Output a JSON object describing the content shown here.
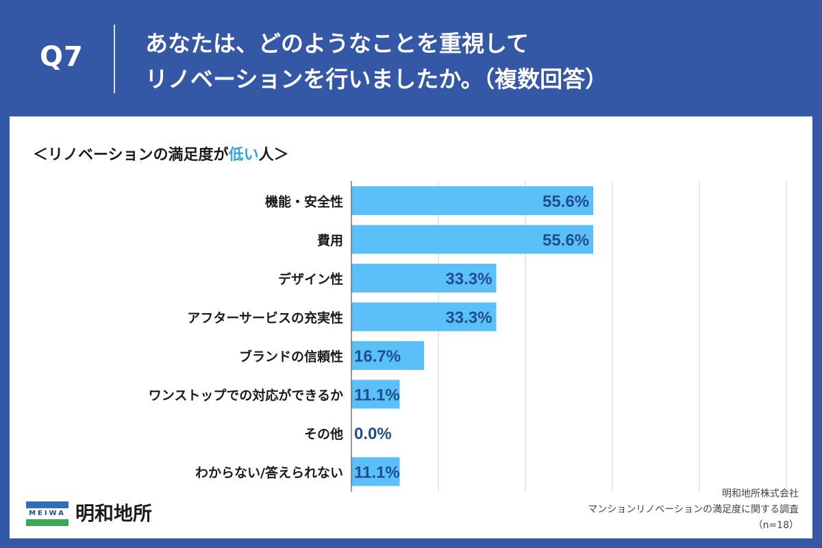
{
  "header": {
    "question_number": "Q7",
    "title_line1": "あなたは、どのようなことを重視して",
    "title_line2": "リノベーションを行いましたか。（複数回答）"
  },
  "subtitle": {
    "prefix": "＜リノベーションの満足度が",
    "highlight": "低い",
    "suffix": "人＞"
  },
  "colors": {
    "background": "#3457a6",
    "bar": "#5bc0f8",
    "value_text": "#1f4e8c",
    "highlight": "#2ea3e6",
    "grid": "#d0d0d0"
  },
  "chart_data": {
    "type": "bar",
    "orientation": "horizontal",
    "title": "＜リノベーションの満足度が低い人＞",
    "xlabel": "",
    "ylabel": "",
    "xlim": [
      0,
      100
    ],
    "grid": true,
    "categories": [
      "機能・安全性",
      "費用",
      "デザイン性",
      "アフターサービスの充実性",
      "ブランドの信頼性",
      "ワンストップでの対応ができるか",
      "その他",
      "わからない/答えられない"
    ],
    "values": [
      55.6,
      55.6,
      33.3,
      33.3,
      16.7,
      11.1,
      0.0,
      11.1
    ],
    "value_labels": [
      "55.6%",
      "55.6%",
      "33.3%",
      "33.3%",
      "16.7%",
      "11.1%",
      "0.0%",
      "11.1%"
    ]
  },
  "footer": {
    "company": "明和地所株式会社",
    "survey": "マンションリノベーションの満足度に関する調査",
    "sample": "（n=18）"
  },
  "logo": {
    "badge_text": "MEIWA",
    "name": "明和地所"
  }
}
